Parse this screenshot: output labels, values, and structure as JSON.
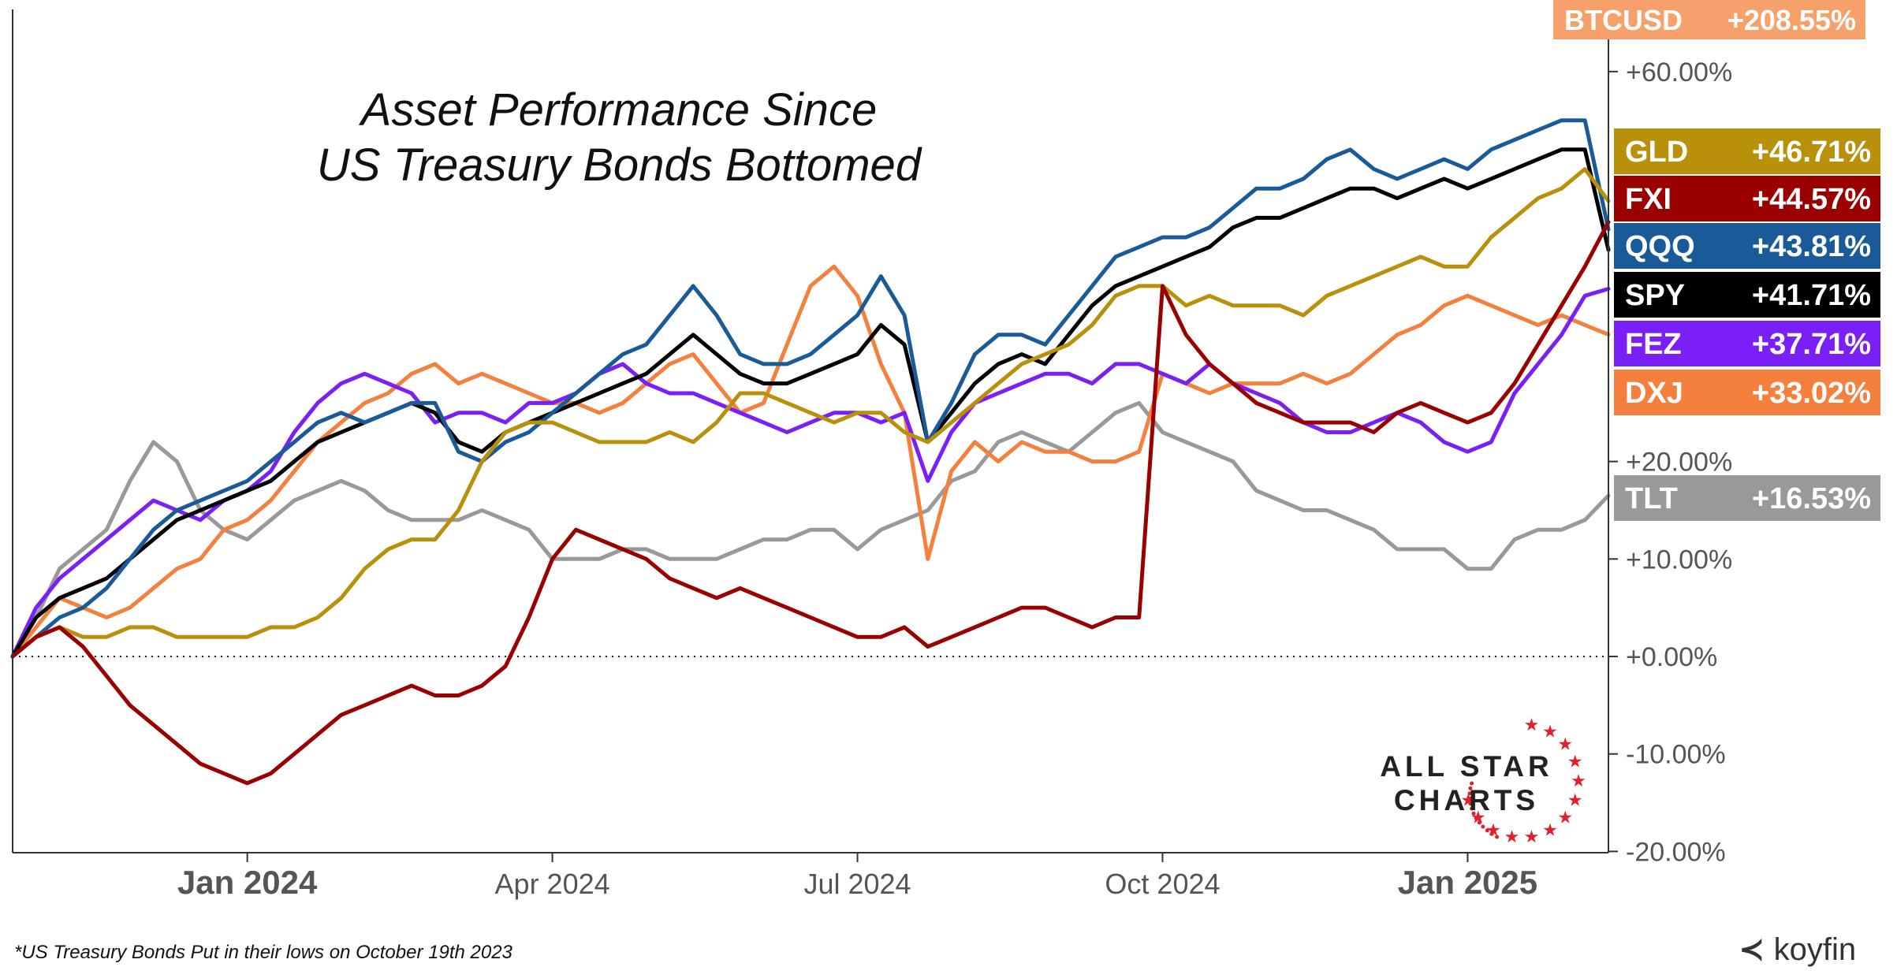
{
  "title": {
    "line1": "Asset Performance Since",
    "line2": "US Treasury Bonds Bottomed"
  },
  "footnote": "*US Treasury Bonds Put in their lows on October 19th 2023",
  "brand": "koyfin",
  "logo": {
    "line1": "ALL STAR",
    "line2": "CHARTS"
  },
  "chart_data": {
    "type": "line",
    "title": "Asset Performance Since US Treasury Bonds Bottomed",
    "xlabel": "",
    "ylabel": "",
    "x_ticks": [
      {
        "label": "Jan 2024",
        "week": 10,
        "bold": true
      },
      {
        "label": "Apr 2024",
        "week": 23,
        "bold": false
      },
      {
        "label": "Jul 2024",
        "week": 36,
        "bold": false
      },
      {
        "label": "Oct 2024",
        "week": 49,
        "bold": false
      },
      {
        "label": "Jan 2025",
        "week": 62,
        "bold": true
      }
    ],
    "y_ticks": [
      {
        "value": 60,
        "label": "+60.00%"
      },
      {
        "value": 20,
        "label": "+20.00%"
      },
      {
        "value": 10,
        "label": "+10.00%"
      },
      {
        "value": 0,
        "label": "+0.00%"
      },
      {
        "value": -10,
        "label": "-10.00%"
      },
      {
        "value": -20,
        "label": "-20.00%"
      }
    ],
    "ylim": [
      -20,
      68
    ],
    "xlim": [
      0,
      68
    ],
    "zero_line": true,
    "series": [
      {
        "name": "TLT",
        "label": "+16.53%",
        "color": "#999999",
        "values": [
          0,
          4,
          9,
          11,
          13,
          18,
          22,
          20,
          15,
          13,
          12,
          14,
          16,
          17,
          18,
          17,
          15,
          14,
          14,
          14,
          15,
          14,
          13,
          10,
          10,
          10,
          11,
          11,
          10,
          10,
          10,
          11,
          12,
          12,
          13,
          13,
          11,
          13,
          14,
          15,
          18,
          19,
          22,
          23,
          22,
          21,
          23,
          25,
          26,
          23,
          22,
          21,
          20,
          17,
          16,
          15,
          15,
          14,
          13,
          11,
          11,
          11,
          9,
          9,
          12,
          13,
          13,
          14,
          16.5
        ]
      },
      {
        "name": "DXJ",
        "label": "+33.02%",
        "color": "#f5803e",
        "values": [
          0,
          3,
          6,
          5,
          4,
          5,
          7,
          9,
          10,
          13,
          14,
          16,
          19,
          22,
          24,
          26,
          27,
          29,
          30,
          28,
          29,
          28,
          27,
          26,
          26,
          25,
          26,
          28,
          30,
          31,
          28,
          25,
          26,
          32,
          38,
          40,
          37,
          30,
          25,
          10,
          19,
          22,
          20,
          22,
          21,
          21,
          20,
          20,
          21,
          29,
          28,
          27,
          28,
          28,
          28,
          29,
          28,
          29,
          31,
          33,
          34,
          36,
          37,
          36,
          35,
          34,
          35,
          34,
          33.02
        ]
      },
      {
        "name": "FEZ",
        "label": "+37.71%",
        "color": "#7a1ff5",
        "values": [
          0,
          5,
          8,
          10,
          12,
          14,
          16,
          15,
          14,
          16,
          17,
          19,
          23,
          26,
          28,
          29,
          28,
          27,
          24,
          25,
          25,
          24,
          26,
          26,
          27,
          29,
          30,
          28,
          27,
          27,
          26,
          25,
          24,
          23,
          24,
          25,
          25,
          24,
          25,
          18,
          23,
          26,
          27,
          28,
          29,
          29,
          28,
          30,
          30,
          29,
          28,
          30,
          28,
          27,
          26,
          24,
          23,
          23,
          24,
          25,
          24,
          22,
          21,
          22,
          27,
          30,
          33,
          37,
          37.71
        ]
      },
      {
        "name": "SPY",
        "label": "+41.71%",
        "color": "#000000",
        "values": [
          0,
          4,
          6,
          7,
          8,
          10,
          12,
          14,
          15,
          16,
          17,
          18,
          20,
          22,
          23,
          24,
          25,
          26,
          25,
          22,
          21,
          23,
          24,
          25,
          26,
          27,
          28,
          29,
          31,
          33,
          31,
          29,
          28,
          28,
          29,
          30,
          31,
          34,
          32,
          22,
          25,
          28,
          30,
          31,
          30,
          33,
          36,
          38,
          39,
          40,
          41,
          42,
          44,
          45,
          45,
          46,
          47,
          48,
          48,
          47,
          48,
          49,
          48,
          49,
          50,
          51,
          52,
          52,
          41.71
        ]
      },
      {
        "name": "QQQ",
        "label": "+43.81%",
        "color": "#1a5a99",
        "values": [
          0,
          2,
          4,
          5,
          7,
          10,
          13,
          15,
          16,
          17,
          18,
          20,
          22,
          24,
          25,
          24,
          25,
          26,
          26,
          21,
          20,
          22,
          23,
          25,
          27,
          29,
          31,
          32,
          35,
          38,
          35,
          31,
          30,
          30,
          31,
          33,
          35,
          39,
          35,
          22,
          26,
          31,
          33,
          33,
          32,
          35,
          38,
          41,
          42,
          43,
          43,
          44,
          46,
          48,
          48,
          49,
          51,
          52,
          50,
          49,
          50,
          51,
          50,
          52,
          53,
          54,
          55,
          55,
          43.81
        ]
      },
      {
        "name": "GLD",
        "label": "+46.71%",
        "color": "#b8900a",
        "values": [
          0,
          2,
          3,
          2,
          2,
          3,
          3,
          2,
          2,
          2,
          2,
          3,
          3,
          4,
          6,
          9,
          11,
          12,
          12,
          15,
          20,
          23,
          24,
          24,
          23,
          22,
          22,
          22,
          23,
          22,
          24,
          27,
          27,
          26,
          25,
          24,
          25,
          25,
          23,
          22,
          24,
          26,
          28,
          30,
          31,
          32,
          34,
          37,
          38,
          38,
          36,
          37,
          36,
          36,
          36,
          35,
          37,
          38,
          39,
          40,
          41,
          40,
          40,
          43,
          45,
          47,
          48,
          50,
          46.71
        ]
      },
      {
        "name": "FXI",
        "label": "+44.57%",
        "color": "#9b0000",
        "values": [
          0,
          2,
          3,
          1,
          -2,
          -5,
          -7,
          -9,
          -11,
          -12,
          -13,
          -12,
          -10,
          -8,
          -6,
          -5,
          -4,
          -3,
          -4,
          -4,
          -3,
          -1,
          4,
          10,
          13,
          12,
          11,
          10,
          8,
          7,
          6,
          7,
          6,
          5,
          4,
          3,
          2,
          2,
          3,
          1,
          2,
          3,
          4,
          5,
          5,
          4,
          3,
          4,
          4,
          38,
          33,
          30,
          28,
          26,
          25,
          24,
          24,
          24,
          23,
          25,
          26,
          25,
          24,
          25,
          28,
          32,
          36,
          40,
          44.57
        ]
      },
      {
        "name": "BTCUSD",
        "label": "+208.55%",
        "color": "#f6a06b",
        "offscale": true,
        "values": []
      }
    ]
  }
}
